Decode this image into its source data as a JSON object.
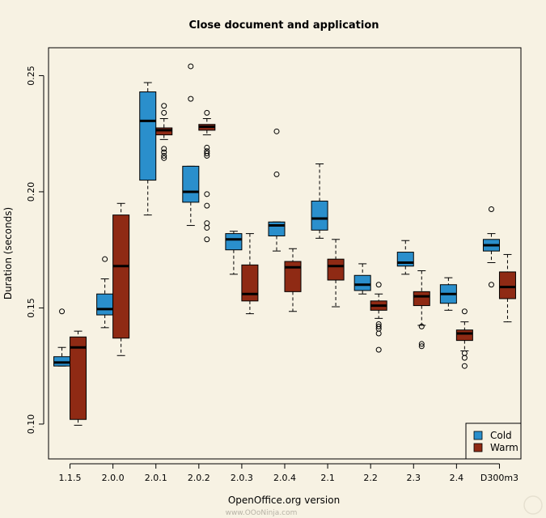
{
  "chart_data": {
    "type": "boxplot",
    "title": "Close document and application",
    "xlabel": "OpenOffice.org version",
    "ylabel": "Duration (seconds)",
    "ylim": [
      0.085,
      0.262
    ],
    "yticks": [
      0.1,
      0.15,
      0.2,
      0.25
    ],
    "ytick_labels": [
      "0.10",
      "0.15",
      "0.20",
      "0.25"
    ],
    "categories": [
      "1.1.5",
      "2.0.0",
      "2.0.1",
      "2.0.2",
      "2.0.3",
      "2.0.4",
      "2.1",
      "2.2",
      "2.3",
      "2.4",
      "D300m3"
    ],
    "series": [
      {
        "name": "Warm",
        "color": "#8f2a14",
        "boxes": [
          {
            "whisker_low": 0.0995,
            "q1": 0.102,
            "median": 0.133,
            "q3": 0.1375,
            "whisker_high": 0.14,
            "outliers": []
          },
          {
            "whisker_low": 0.1295,
            "q1": 0.137,
            "median": 0.168,
            "q3": 0.19,
            "whisker_high": 0.195,
            "outliers": []
          },
          {
            "whisker_low": 0.2225,
            "q1": 0.2245,
            "median": 0.2265,
            "q3": 0.2275,
            "whisker_high": 0.2315,
            "outliers": [
              0.237,
              0.234,
              0.2185,
              0.217,
              0.2155,
              0.2145
            ]
          },
          {
            "whisker_low": 0.2245,
            "q1": 0.2265,
            "median": 0.228,
            "q3": 0.229,
            "whisker_high": 0.2315,
            "outliers": [
              0.234,
              0.219,
              0.2175,
              0.2165,
              0.2155,
              0.199,
              0.194,
              0.1865,
              0.1845,
              0.1795
            ]
          },
          {
            "whisker_low": 0.1475,
            "q1": 0.153,
            "median": 0.156,
            "q3": 0.1685,
            "whisker_high": 0.182,
            "outliers": []
          },
          {
            "whisker_low": 0.1485,
            "q1": 0.157,
            "median": 0.1675,
            "q3": 0.17,
            "whisker_high": 0.1755,
            "outliers": []
          },
          {
            "whisker_low": 0.1505,
            "q1": 0.162,
            "median": 0.168,
            "q3": 0.171,
            "whisker_high": 0.1795,
            "outliers": []
          },
          {
            "whisker_low": 0.1455,
            "q1": 0.149,
            "median": 0.151,
            "q3": 0.153,
            "whisker_high": 0.156,
            "outliers": [
              0.16,
              0.143,
              0.142,
              0.141,
              0.139,
              0.132
            ]
          },
          {
            "whisker_low": 0.1425,
            "q1": 0.151,
            "median": 0.155,
            "q3": 0.157,
            "whisker_high": 0.166,
            "outliers": [
              0.142,
              0.1345,
              0.1335
            ]
          },
          {
            "whisker_low": 0.1315,
            "q1": 0.136,
            "median": 0.139,
            "q3": 0.1405,
            "whisker_high": 0.144,
            "outliers": [
              0.1485,
              0.1305,
              0.1285,
              0.125
            ]
          },
          {
            "whisker_low": 0.144,
            "q1": 0.154,
            "median": 0.159,
            "q3": 0.1655,
            "whisker_high": 0.173,
            "outliers": []
          }
        ]
      },
      {
        "name": "Cold",
        "color": "#2a8fcc",
        "boxes": [
          {
            "whisker_low": 0.125,
            "q1": 0.125,
            "median": 0.1265,
            "q3": 0.129,
            "whisker_high": 0.133,
            "outliers": [
              0.1485
            ]
          },
          {
            "whisker_low": 0.1415,
            "q1": 0.147,
            "median": 0.1495,
            "q3": 0.156,
            "whisker_high": 0.1625,
            "outliers": [
              0.171
            ]
          },
          {
            "whisker_low": 0.19,
            "q1": 0.205,
            "median": 0.2305,
            "q3": 0.243,
            "whisker_high": 0.247,
            "outliers": []
          },
          {
            "whisker_low": 0.1855,
            "q1": 0.1955,
            "median": 0.2,
            "q3": 0.211,
            "whisker_high": 0.211,
            "outliers": [
              0.254,
              0.24
            ]
          },
          {
            "whisker_low": 0.1645,
            "q1": 0.175,
            "median": 0.1795,
            "q3": 0.182,
            "whisker_high": 0.183,
            "outliers": []
          },
          {
            "whisker_low": 0.1745,
            "q1": 0.181,
            "median": 0.1855,
            "q3": 0.187,
            "whisker_high": 0.187,
            "outliers": [
              0.226,
              0.2075
            ]
          },
          {
            "whisker_low": 0.18,
            "q1": 0.1835,
            "median": 0.1885,
            "q3": 0.196,
            "whisker_high": 0.212,
            "outliers": []
          },
          {
            "whisker_low": 0.156,
            "q1": 0.1575,
            "median": 0.16,
            "q3": 0.164,
            "whisker_high": 0.169,
            "outliers": []
          },
          {
            "whisker_low": 0.1645,
            "q1": 0.168,
            "median": 0.1695,
            "q3": 0.174,
            "whisker_high": 0.179,
            "outliers": []
          },
          {
            "whisker_low": 0.149,
            "q1": 0.152,
            "median": 0.156,
            "q3": 0.16,
            "whisker_high": 0.163,
            "outliers": []
          },
          {
            "whisker_low": 0.1695,
            "q1": 0.1745,
            "median": 0.177,
            "q3": 0.1795,
            "whisker_high": 0.182,
            "outliers": [
              0.1925,
              0.16
            ]
          }
        ]
      }
    ],
    "legend": {
      "position": "bottom-right",
      "entries": [
        "Cold",
        "Warm"
      ]
    },
    "grid": false
  },
  "watermark": "www.OOoNinja.com"
}
